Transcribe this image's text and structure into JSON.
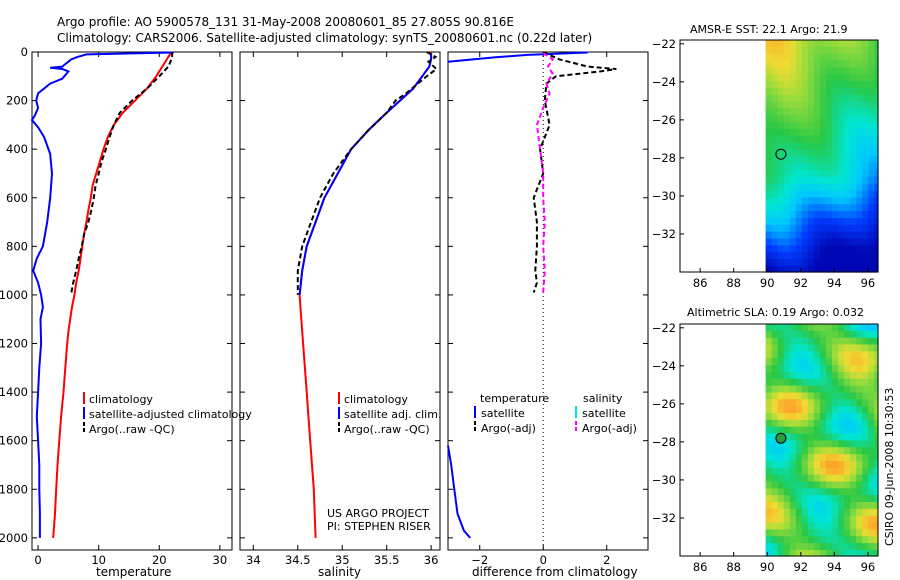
{
  "header": {
    "title_line1": "Argo profile: AO 5900578_131 31-May-2008 20080601_85 27.805S 90.816E",
    "title_line2": "Climatology: CARS2006. Satellite-adjusted climatology: synTS_20080601.nc (0.22d later)"
  },
  "footer": {
    "project": "US ARGO PROJECT",
    "pi": "PI: STEPHEN RISER",
    "timestamp": "CSIRO 09-Jun-2008 10:30:53"
  },
  "colors": {
    "climatology": "#ff0000",
    "satellite": "#0000ff",
    "argo": "#000000",
    "sat_salinity": "#00e5e5",
    "argo_salinity_diff": "#ff00ff"
  },
  "chart_data": [
    {
      "id": "temperature",
      "type": "line",
      "xlabel": "temperature",
      "xlim": [
        -1,
        32
      ],
      "ylim": [
        2050,
        0
      ],
      "xticks": [
        0,
        10,
        20,
        30
      ],
      "yticks": [
        0,
        200,
        400,
        600,
        800,
        1000,
        1200,
        1400,
        1600,
        1800,
        2000
      ],
      "legend": {
        "location": "lower-right",
        "entries": [
          "climatology",
          "satellite-adjusted climatology",
          "Argo(..raw -QC)"
        ]
      },
      "series": [
        {
          "name": "climatology",
          "color": "#ff0000",
          "dash": "",
          "points": [
            [
              22.0,
              0
            ],
            [
              20.5,
              60
            ],
            [
              19.5,
              100
            ],
            [
              18,
              150
            ],
            [
              16,
              200
            ],
            [
              14,
              250
            ],
            [
              12.5,
              300
            ],
            [
              11.5,
              350
            ],
            [
              10.8,
              400
            ],
            [
              10.2,
              450
            ],
            [
              9.6,
              500
            ],
            [
              9,
              550
            ],
            [
              8.7,
              600
            ],
            [
              8.3,
              650
            ],
            [
              8,
              700
            ],
            [
              7.6,
              750
            ],
            [
              7.3,
              800
            ],
            [
              7,
              850
            ],
            [
              6.7,
              900
            ],
            [
              6.3,
              950
            ],
            [
              6,
              1000
            ],
            [
              5.6,
              1050
            ],
            [
              5.3,
              1100
            ],
            [
              5,
              1150
            ],
            [
              4.8,
              1200
            ],
            [
              4.5,
              1300
            ],
            [
              4.2,
              1400
            ],
            [
              3.8,
              1500
            ],
            [
              3.5,
              1600
            ],
            [
              3.2,
              1700
            ],
            [
              3,
              1800
            ],
            [
              2.8,
              1900
            ],
            [
              2.5,
              2000
            ]
          ]
        },
        {
          "name": "satellite-adjusted climatology",
          "color": "#0000ff",
          "dash": "",
          "points": [
            [
              22.3,
              2
            ],
            [
              8,
              10
            ],
            [
              6.5,
              20
            ],
            [
              5.5,
              30
            ],
            [
              5,
              40
            ],
            [
              4.5,
              50
            ],
            [
              4,
              60
            ],
            [
              2,
              65
            ],
            [
              4,
              70
            ],
            [
              5,
              80
            ],
            [
              4,
              110
            ],
            [
              2,
              130
            ],
            [
              0,
              170
            ],
            [
              -0.3,
              200
            ],
            [
              0,
              230
            ],
            [
              -0.5,
              260
            ],
            [
              -1,
              280
            ],
            [
              0,
              310
            ],
            [
              1,
              350
            ],
            [
              2,
              420
            ],
            [
              2.3,
              500
            ],
            [
              2,
              600
            ],
            [
              1.5,
              700
            ],
            [
              0.8,
              800
            ],
            [
              -0.2,
              850
            ],
            [
              -0.8,
              900
            ],
            [
              0,
              950
            ],
            [
              0.5,
              1000
            ],
            [
              0.8,
              1050
            ],
            [
              0.4,
              1100
            ],
            [
              0.5,
              1200
            ],
            [
              0.2,
              1300
            ],
            [
              0,
              1400
            ],
            [
              -0.2,
              1500
            ],
            [
              0,
              1600
            ],
            [
              0.2,
              1700
            ],
            [
              0.2,
              1800
            ],
            [
              0.3,
              1900
            ],
            [
              0.3,
              2000
            ]
          ]
        },
        {
          "name": "Argo(..raw -QC)",
          "color": "#000000",
          "dash": "5,3",
          "points": [
            [
              22.2,
              0
            ],
            [
              22.0,
              30
            ],
            [
              21.5,
              60
            ],
            [
              20,
              100
            ],
            [
              18,
              150
            ],
            [
              15.5,
              200
            ],
            [
              13.5,
              250
            ],
            [
              12.5,
              300
            ],
            [
              11.8,
              350
            ],
            [
              11.2,
              400
            ],
            [
              10.5,
              450
            ],
            [
              10,
              500
            ],
            [
              9.5,
              550
            ],
            [
              9.2,
              600
            ],
            [
              8.8,
              650
            ],
            [
              8.3,
              700
            ],
            [
              7.6,
              750
            ],
            [
              7.2,
              800
            ],
            [
              6.7,
              850
            ],
            [
              6.3,
              900
            ],
            [
              5.8,
              950
            ],
            [
              5.5,
              990
            ]
          ]
        }
      ]
    },
    {
      "id": "salinity",
      "type": "line",
      "xlabel": "salinity",
      "xlim": [
        33.85,
        36.1
      ],
      "ylim": [
        2050,
        0
      ],
      "xticks": [
        34,
        34.5,
        35,
        35.5,
        36
      ],
      "legend": {
        "location": "lower-right",
        "entries": [
          "climatology",
          "satellite adj. clim.",
          "Argo(..raw -QC)"
        ]
      },
      "series": [
        {
          "name": "climatology",
          "color": "#ff0000",
          "dash": "",
          "points": [
            [
              36.0,
              0
            ],
            [
              36.0,
              30
            ],
            [
              35.98,
              60
            ],
            [
              35.9,
              100
            ],
            [
              35.8,
              150
            ],
            [
              35.65,
              200
            ],
            [
              35.5,
              250
            ],
            [
              35.3,
              320
            ],
            [
              35.1,
              400
            ],
            [
              34.95,
              500
            ],
            [
              34.8,
              600
            ],
            [
              34.7,
              700
            ],
            [
              34.6,
              800
            ],
            [
              34.55,
              900
            ],
            [
              34.52,
              1000
            ],
            [
              34.54,
              1100
            ],
            [
              34.56,
              1200
            ],
            [
              34.58,
              1300
            ],
            [
              34.6,
              1400
            ],
            [
              34.62,
              1500
            ],
            [
              34.64,
              1600
            ],
            [
              34.66,
              1700
            ],
            [
              34.68,
              1800
            ],
            [
              34.69,
              1900
            ],
            [
              34.7,
              2000
            ]
          ]
        },
        {
          "name": "satellite adj. clim.",
          "color": "#0000ff",
          "dash": "",
          "points": [
            [
              36.0,
              5
            ],
            [
              36.0,
              30
            ],
            [
              35.98,
              60
            ],
            [
              35.9,
              100
            ],
            [
              35.8,
              150
            ],
            [
              35.65,
              200
            ],
            [
              35.5,
              250
            ],
            [
              35.3,
              320
            ],
            [
              35.1,
              400
            ],
            [
              34.95,
              500
            ],
            [
              34.8,
              600
            ],
            [
              34.7,
              700
            ],
            [
              34.6,
              800
            ],
            [
              34.55,
              900
            ],
            [
              34.52,
              1000
            ]
          ]
        },
        {
          "name": "Argo(..raw -QC)",
          "color": "#000000",
          "dash": "5,3",
          "points": [
            [
              35.95,
              0
            ],
            [
              36.05,
              20
            ],
            [
              35.97,
              40
            ],
            [
              36.06,
              70
            ],
            [
              35.95,
              100
            ],
            [
              35.85,
              130
            ],
            [
              35.72,
              170
            ],
            [
              35.6,
              200
            ],
            [
              35.5,
              250
            ],
            [
              35.3,
              320
            ],
            [
              35.1,
              400
            ],
            [
              34.9,
              500
            ],
            [
              34.75,
              600
            ],
            [
              34.65,
              700
            ],
            [
              34.55,
              800
            ],
            [
              34.5,
              900
            ],
            [
              34.5,
              1000
            ]
          ]
        }
      ]
    },
    {
      "id": "difference",
      "type": "line",
      "xlabel": "difference from climatology",
      "xlim": [
        -3,
        3.3
      ],
      "ylim": [
        2050,
        0
      ],
      "xticks": [
        -2,
        0,
        2
      ],
      "zero_line": true,
      "legend": {
        "location": "lower-center",
        "temperature_header": "temperature",
        "salinity_header": "salinity",
        "entries": [
          "satellite",
          "Argo(-adj)",
          "satellite",
          "Argo(-adj)"
        ]
      },
      "series": [
        {
          "name": "temperature satellite",
          "color": "#0000ff",
          "dash": "",
          "points": [
            [
              1.4,
              2
            ],
            [
              -0.5,
              12
            ],
            [
              -1.5,
              22
            ],
            [
              -3,
              40
            ]
          ]
        },
        {
          "name": "temperature satellite deep",
          "color": "#0000ff",
          "dash": "",
          "points": [
            [
              -3,
              1620
            ],
            [
              -2.9,
              1700
            ],
            [
              -2.8,
              1800
            ],
            [
              -2.7,
              1900
            ],
            [
              -2.5,
              1970
            ],
            [
              -2.3,
              2000
            ]
          ]
        },
        {
          "name": "temperature Argo(-adj)",
          "color": "#000000",
          "dash": "5,3",
          "points": [
            [
              0,
              0
            ],
            [
              0.5,
              30
            ],
            [
              1.4,
              60
            ],
            [
              2.3,
              70
            ],
            [
              1.8,
              80
            ],
            [
              0.4,
              100
            ],
            [
              0.1,
              130
            ],
            [
              0.05,
              200
            ],
            [
              0.2,
              300
            ],
            [
              -0.1,
              400
            ],
            [
              0,
              500
            ],
            [
              -0.3,
              600
            ],
            [
              -0.2,
              700
            ],
            [
              -0.2,
              800
            ],
            [
              -0.25,
              900
            ],
            [
              -0.2,
              950
            ],
            [
              -0.3,
              990
            ]
          ]
        },
        {
          "name": "salinity Argo(-adj)",
          "color": "#ff00ff",
          "dash": "5,3",
          "points": [
            [
              0,
              5
            ],
            [
              0.3,
              30
            ],
            [
              0.15,
              60
            ],
            [
              0.3,
              90
            ],
            [
              0.1,
              130
            ],
            [
              0.2,
              170
            ],
            [
              0,
              230
            ],
            [
              -0.2,
              300
            ],
            [
              -0.1,
              400
            ],
            [
              0,
              500
            ],
            [
              0,
              600
            ],
            [
              0.05,
              700
            ],
            [
              0,
              800
            ],
            [
              0.05,
              900
            ],
            [
              0,
              990
            ]
          ]
        }
      ]
    },
    {
      "id": "sst-map",
      "type": "heatmap",
      "title": "AMSR-E SST: 22.1 Argo: 21.9",
      "xticks": [
        86,
        88,
        90,
        92,
        94,
        96
      ],
      "yticks": [
        -22,
        -24,
        -26,
        -28,
        -30,
        -32
      ],
      "xlim": [
        84.8,
        96.6
      ],
      "ylim": [
        -34,
        -21.8
      ],
      "data_lon_min": 89.9,
      "marker": {
        "lon": 90.816,
        "lat": -27.805
      }
    },
    {
      "id": "sla-map",
      "type": "heatmap",
      "title": "Altimetric SLA: 0.19 Argo: 0.032",
      "xticks": [
        86,
        88,
        90,
        92,
        94,
        96
      ],
      "yticks": [
        -22,
        -24,
        -26,
        -28,
        -30,
        -32
      ],
      "xlim": [
        84.8,
        96.6
      ],
      "ylim": [
        -34,
        -21.8
      ],
      "data_lon_min": 89.9,
      "marker": {
        "lon": 90.816,
        "lat": -27.805
      }
    }
  ]
}
